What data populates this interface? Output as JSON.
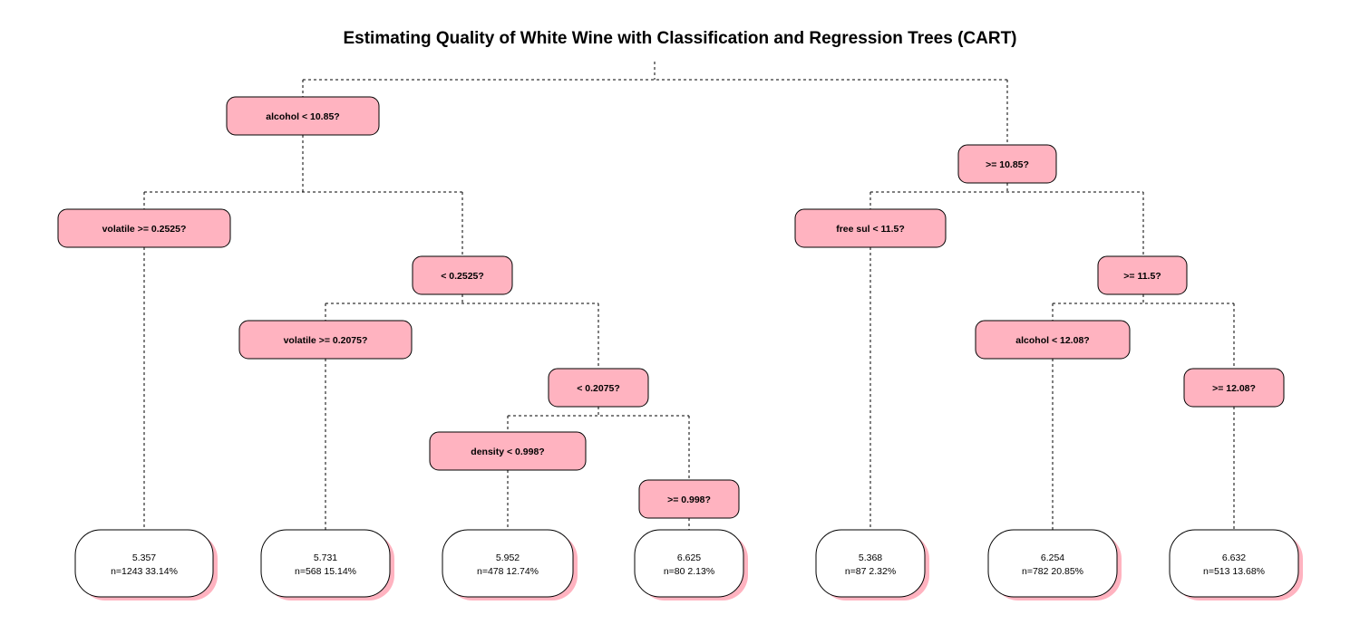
{
  "title": "Estimating Quality of White Wine with Classification and Regression Trees (CART)",
  "colors": {
    "split_fill": "#ffb3c0",
    "leaf_fill": "#ffffff",
    "leaf_shadow": "#ffb3c0",
    "edge": "#000000"
  },
  "splits": [
    {
      "id": "s1",
      "label": "alcohol < 10.85?"
    },
    {
      "id": "s2",
      "label": ">= 10.85?"
    },
    {
      "id": "s3",
      "label": "volatile >= 0.2525?"
    },
    {
      "id": "s4",
      "label": "< 0.2525?"
    },
    {
      "id": "s5",
      "label": "volatile >= 0.2075?"
    },
    {
      "id": "s6",
      "label": "< 0.2075?"
    },
    {
      "id": "s7",
      "label": "density < 0.998?"
    },
    {
      "id": "s8",
      "label": ">= 0.998?"
    },
    {
      "id": "s9",
      "label": "free sul < 11.5?"
    },
    {
      "id": "s10",
      "label": ">= 11.5?"
    },
    {
      "id": "s11",
      "label": "alcohol < 12.08?"
    },
    {
      "id": "s12",
      "label": ">= 12.08?"
    }
  ],
  "leaves": [
    {
      "id": "l1",
      "value": "5.357",
      "info": "n=1243  33.14%"
    },
    {
      "id": "l2",
      "value": "5.731",
      "info": "n=568  15.14%"
    },
    {
      "id": "l3",
      "value": "5.952",
      "info": "n=478  12.74%"
    },
    {
      "id": "l4",
      "value": "6.625",
      "info": "n=80  2.13%"
    },
    {
      "id": "l5",
      "value": "5.368",
      "info": "n=87  2.32%"
    },
    {
      "id": "l6",
      "value": "6.254",
      "info": "n=782  20.85%"
    },
    {
      "id": "l7",
      "value": "6.632",
      "info": "n=513  13.68%"
    }
  ]
}
